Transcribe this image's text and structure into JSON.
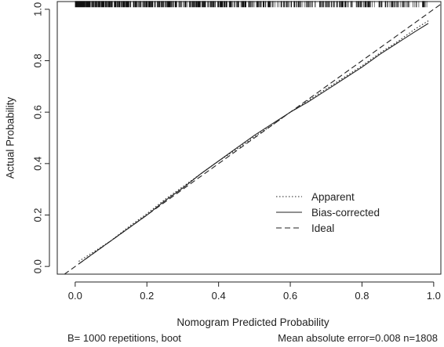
{
  "chart_data": {
    "type": "line",
    "title": "",
    "xlabel": "Nomogram Predicted Probability",
    "ylabel": "Actual Probability",
    "xlim": [
      -0.05,
      1.02
    ],
    "ylim": [
      -0.03,
      1.03
    ],
    "x_ticks": [
      0.0,
      0.2,
      0.4,
      0.6,
      0.8,
      1.0
    ],
    "x_tick_labels": [
      "0.0",
      "0.2",
      "0.4",
      "0.6",
      "0.8",
      "1.0"
    ],
    "y_ticks": [
      0.0,
      0.2,
      0.4,
      0.6,
      0.8,
      1.0
    ],
    "y_tick_labels": [
      "0.0",
      "0.2",
      "0.4",
      "0.6",
      "0.8",
      "1.0"
    ],
    "grid": false,
    "legend_position": "bottom-right",
    "series": [
      {
        "name": "Apparent",
        "style": "dotted",
        "x": [
          0.01,
          0.05,
          0.1,
          0.15,
          0.2,
          0.25,
          0.3,
          0.35,
          0.4,
          0.45,
          0.5,
          0.55,
          0.6,
          0.65,
          0.7,
          0.75,
          0.8,
          0.85,
          0.9,
          0.95,
          0.985
        ],
        "y": [
          0.02,
          0.055,
          0.1,
          0.155,
          0.205,
          0.26,
          0.31,
          0.36,
          0.41,
          0.455,
          0.505,
          0.55,
          0.6,
          0.645,
          0.69,
          0.735,
          0.78,
          0.83,
          0.875,
          0.925,
          0.955
        ]
      },
      {
        "name": "Bias-corrected",
        "style": "solid",
        "x": [
          0.01,
          0.05,
          0.1,
          0.15,
          0.2,
          0.25,
          0.3,
          0.35,
          0.4,
          0.45,
          0.5,
          0.55,
          0.6,
          0.65,
          0.7,
          0.75,
          0.8,
          0.85,
          0.9,
          0.95,
          0.985
        ],
        "y": [
          0.01,
          0.05,
          0.1,
          0.15,
          0.2,
          0.255,
          0.305,
          0.36,
          0.41,
          0.46,
          0.51,
          0.555,
          0.6,
          0.64,
          0.685,
          0.73,
          0.775,
          0.825,
          0.87,
          0.915,
          0.945
        ]
      },
      {
        "name": "Ideal",
        "style": "dashed",
        "x": [
          -0.05,
          1.02
        ],
        "y": [
          -0.05,
          1.02
        ]
      }
    ],
    "rug": {
      "y": 1.02,
      "x_range": [
        0.0,
        0.985
      ],
      "density": "dense near 0, sparse toward 1"
    }
  },
  "footer": {
    "left": "B= 1000 repetitions, boot",
    "right": "Mean absolute error=0.008 n=1808"
  }
}
